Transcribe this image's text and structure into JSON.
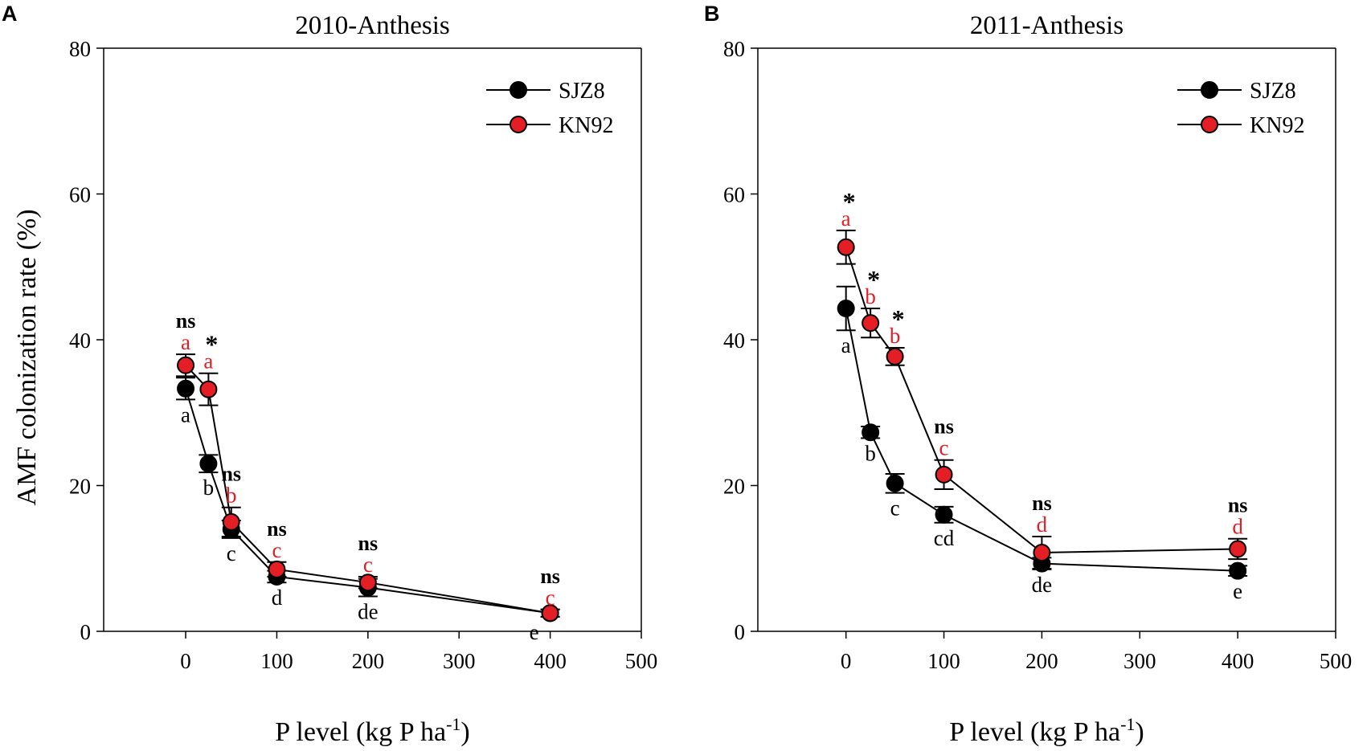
{
  "ylabel": "AMF colonization rate (%)",
  "colors": {
    "SJZ8": "#000000",
    "KN92": "#e31e24",
    "axis": "#000000"
  },
  "legend": {
    "position": "top-right",
    "entries": [
      "SJZ8",
      "KN92"
    ]
  },
  "chart_data": [
    {
      "type": "line",
      "panel": "A",
      "title": "2010-Anthesis",
      "xlabel": "P level (kg P ha",
      "xlabel_sup": "-1",
      "xlabel_end": ")",
      "ylabel": "AMF colonization rate (%)",
      "xlim": [
        -90,
        500
      ],
      "ylim": [
        0,
        80
      ],
      "xticks": [
        0,
        100,
        200,
        300,
        400,
        500
      ],
      "yticks": [
        0,
        20,
        40,
        60,
        80
      ],
      "x": [
        0,
        25,
        50,
        100,
        200,
        400
      ],
      "series": [
        {
          "name": "SJZ8",
          "values": [
            33.3,
            23.0,
            14.0,
            7.5,
            6.0,
            2.5
          ],
          "errors": [
            1.5,
            1.2,
            1.2,
            0.8,
            1.2,
            0.5
          ],
          "letters": [
            "a",
            "b",
            "c",
            "d",
            "de",
            "e"
          ]
        },
        {
          "name": "KN92",
          "values": [
            36.5,
            33.2,
            15.0,
            8.5,
            6.7,
            2.5
          ],
          "errors": [
            1.5,
            2.2,
            2.0,
            1.0,
            0.8,
            0.5
          ],
          "letters": [
            "a",
            "a",
            "b",
            "c",
            "c",
            "c"
          ]
        }
      ],
      "significance": [
        "ns",
        "*",
        "ns",
        "ns",
        "ns",
        "ns"
      ]
    },
    {
      "type": "line",
      "panel": "B",
      "title": "2011-Anthesis",
      "xlabel": "P level (kg P ha",
      "xlabel_sup": "-1",
      "xlabel_end": ")",
      "ylabel": "AMF colonization rate (%)",
      "xlim": [
        -90,
        500
      ],
      "ylim": [
        0,
        80
      ],
      "xticks": [
        0,
        100,
        200,
        300,
        400,
        500
      ],
      "yticks": [
        0,
        20,
        40,
        60,
        80
      ],
      "x": [
        0,
        25,
        50,
        100,
        200,
        400
      ],
      "series": [
        {
          "name": "SJZ8",
          "values": [
            44.3,
            27.3,
            20.3,
            16.0,
            9.3,
            8.3
          ],
          "errors": [
            3.0,
            0.8,
            1.3,
            1.1,
            0.8,
            0.7
          ],
          "letters": [
            "a",
            "b",
            "c",
            "cd",
            "de",
            "e"
          ]
        },
        {
          "name": "KN92",
          "values": [
            52.7,
            42.3,
            37.7,
            21.5,
            10.8,
            11.3
          ],
          "errors": [
            2.3,
            2.0,
            1.2,
            2.0,
            2.2,
            1.4
          ],
          "letters": [
            "a",
            "b",
            "b",
            "c",
            "d",
            "d"
          ]
        }
      ],
      "significance": [
        "*",
        "*",
        "*",
        "ns",
        "ns",
        "ns"
      ]
    }
  ]
}
